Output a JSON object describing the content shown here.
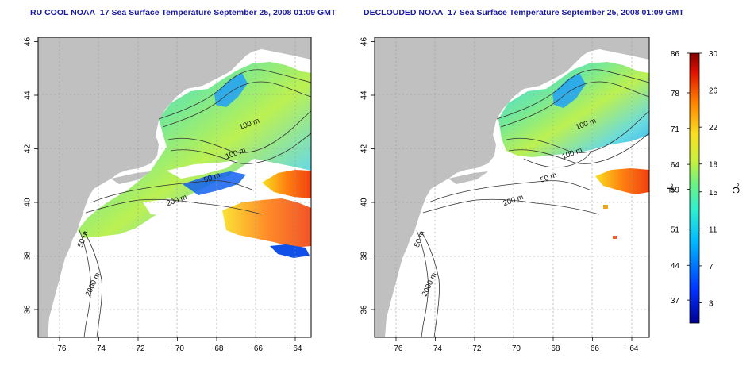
{
  "titles": {
    "left": "RU COOL NOAA–17 Sea Surface Temperature September 25, 2008 01:09 GMT",
    "right": "DECLOUDED NOAA–17 Sea Surface Temperature September 25, 2008 01:09 GMT"
  },
  "axes": {
    "x_ticks": [
      "−76",
      "−74",
      "−72",
      "−70",
      "−68",
      "−66",
      "−64"
    ],
    "y_ticks": [
      "36",
      "38",
      "40",
      "42",
      "44",
      "46"
    ]
  },
  "contour_labels": [
    {
      "text": "100 m",
      "lon": -66.3,
      "lat": 42.85
    },
    {
      "text": "100 m",
      "lon": -67.0,
      "lat": 41.75
    },
    {
      "text": "50 m",
      "lon": -68.2,
      "lat": 40.85
    },
    {
      "text": "200 m",
      "lon": -70.0,
      "lat": 40.0
    },
    {
      "text": "50 m",
      "lon": -74.7,
      "lat": 38.6
    },
    {
      "text": "2000 m",
      "lon": -74.2,
      "lat": 36.9
    }
  ],
  "colorbar": {
    "fahrenheit_ticks": [
      "86",
      "78",
      "71",
      "64",
      "59",
      "51",
      "44",
      "37"
    ],
    "celsius_ticks": [
      "30",
      "26",
      "22",
      "18",
      "15",
      "11",
      "7",
      "3"
    ],
    "fahrenheit_unit": "°F",
    "celsius_unit": "°C"
  },
  "colors": {
    "land": "#c0c0c0",
    "ocean": "#ffffff",
    "title": "#1a1aa0"
  }
}
